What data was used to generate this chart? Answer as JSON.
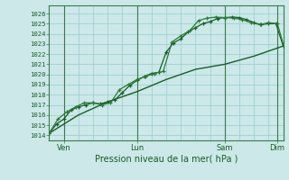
{
  "bg_color": "#cce8e8",
  "grid_color": "#99cccc",
  "line_color_dark": "#1a5c2a",
  "line_color_med": "#2d7a3a",
  "title": "Pression niveau de la mer( hPa )",
  "xlabel_days": [
    "Ven",
    "Lun",
    "Sam",
    "Dim"
  ],
  "ylim": [
    1013.5,
    1026.8
  ],
  "yticks": [
    1014,
    1015,
    1016,
    1017,
    1018,
    1019,
    1020,
    1021,
    1022,
    1023,
    1024,
    1025,
    1026
  ],
  "series1_x": [
    0.0,
    0.25,
    0.5,
    0.75,
    1.0,
    1.25,
    1.5,
    1.75,
    2.0,
    2.25,
    2.5,
    2.75,
    3.0,
    3.25,
    3.5,
    3.75,
    4.0,
    4.25,
    4.5,
    4.75,
    5.0,
    5.25,
    5.5,
    5.75,
    6.0,
    6.25,
    6.5,
    6.75,
    7.0,
    7.25,
    7.5,
    7.75,
    8.0
  ],
  "series1_y": [
    1014.2,
    1015.1,
    1015.6,
    1016.5,
    1016.8,
    1017.0,
    1017.2,
    1017.1,
    1017.3,
    1017.5,
    1018.2,
    1018.9,
    1019.4,
    1019.8,
    1020.1,
    1020.2,
    1022.2,
    1023.1,
    1023.5,
    1024.2,
    1024.6,
    1025.0,
    1025.2,
    1025.5,
    1025.6,
    1025.65,
    1025.6,
    1025.4,
    1025.1,
    1024.9,
    1025.0,
    1025.0,
    1022.8
  ],
  "series2_x": [
    0.0,
    0.3,
    0.6,
    0.9,
    1.2,
    1.5,
    1.8,
    2.1,
    2.4,
    2.7,
    3.0,
    3.3,
    3.6,
    3.9,
    4.2,
    4.5,
    4.8,
    5.1,
    5.4,
    5.7,
    6.0,
    6.3,
    6.6,
    6.9,
    7.2,
    7.5,
    7.8,
    8.0
  ],
  "series2_y": [
    1014.2,
    1015.6,
    1016.3,
    1016.8,
    1017.2,
    1017.2,
    1017.0,
    1017.2,
    1018.5,
    1019.0,
    1019.5,
    1019.8,
    1020.1,
    1020.3,
    1023.2,
    1023.8,
    1024.3,
    1025.3,
    1025.55,
    1025.65,
    1025.6,
    1025.55,
    1025.4,
    1025.1,
    1024.9,
    1025.1,
    1025.0,
    1023.0
  ],
  "series3_x": [
    0.0,
    1.0,
    2.0,
    3.0,
    4.0,
    5.0,
    6.0,
    7.0,
    8.0
  ],
  "series3_y": [
    1014.2,
    1016.0,
    1017.3,
    1018.3,
    1019.5,
    1020.5,
    1021.0,
    1021.8,
    1022.8
  ],
  "xlim": [
    0,
    8.0
  ],
  "xtick_positions": [
    0.5,
    3.0,
    6.0,
    7.8
  ],
  "vline_x": [
    0.5,
    3.0,
    6.0,
    7.8
  ],
  "hgrid_every": 1,
  "vgrid_x": [
    0.0,
    0.5,
    1.0,
    1.5,
    2.0,
    2.5,
    3.0,
    3.5,
    4.0,
    4.5,
    5.0,
    5.5,
    6.0,
    6.5,
    7.0,
    7.5,
    8.0
  ]
}
